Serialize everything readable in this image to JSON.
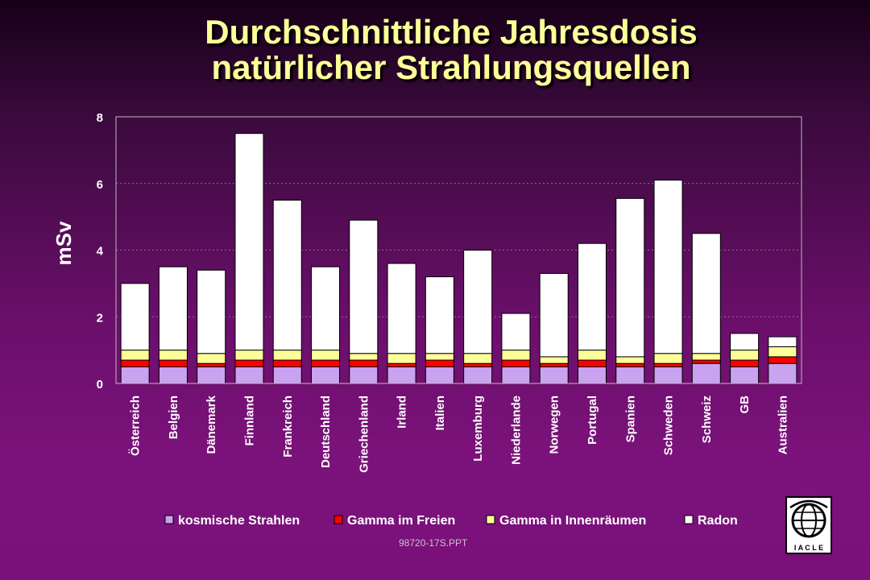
{
  "title_line1": "Durchschnittliche Jahresdosis",
  "title_line2": "natürlicher Strahlungsquellen",
  "footer": "98720-17S.PPT",
  "logo_text": "I A C L E",
  "colors": {
    "title": "#ffff99",
    "kosmische": "#c9a2f0",
    "gamma_frei": "#ff0000",
    "gamma_innen": "#ffff99",
    "radon": "#ffffff"
  },
  "chart_data": {
    "type": "bar",
    "stacked": true,
    "ylabel": "mSv",
    "ylim": [
      0,
      8
    ],
    "yticks": [
      0,
      2,
      4,
      6,
      8
    ],
    "grid": true,
    "legend_position": "bottom",
    "categories": [
      "Österreich",
      "Belgien",
      "Dänemark",
      "Finnland",
      "Frankreich",
      "Deutschland",
      "Griechenland",
      "Irland",
      "Italien",
      "Luxemburg",
      "Niederlande",
      "Norwegen",
      "Portugal",
      "Spanien",
      "Schweden",
      "Schweiz",
      "GB",
      "Australien"
    ],
    "series": [
      {
        "name": "kosmische Strahlen",
        "values": [
          0.5,
          0.5,
          0.5,
          0.5,
          0.5,
          0.5,
          0.5,
          0.5,
          0.5,
          0.5,
          0.5,
          0.5,
          0.5,
          0.5,
          0.5,
          0.6,
          0.5,
          0.6
        ]
      },
      {
        "name": "Gamma im Freien",
        "values": [
          0.2,
          0.2,
          0.1,
          0.2,
          0.2,
          0.2,
          0.2,
          0.1,
          0.2,
          0.1,
          0.2,
          0.1,
          0.2,
          0.1,
          0.1,
          0.1,
          0.2,
          0.2
        ]
      },
      {
        "name": "Gamma in Innenräumen",
        "values": [
          0.3,
          0.3,
          0.3,
          0.3,
          0.3,
          0.3,
          0.2,
          0.3,
          0.2,
          0.3,
          0.3,
          0.2,
          0.3,
          0.2,
          0.3,
          0.2,
          0.3,
          0.3
        ]
      },
      {
        "name": "Radon",
        "values": [
          2.0,
          2.5,
          2.5,
          6.5,
          4.5,
          2.5,
          4.0,
          2.7,
          2.3,
          3.1,
          1.1,
          2.5,
          3.2,
          4.75,
          5.2,
          3.6,
          0.5,
          0.3
        ]
      }
    ]
  }
}
